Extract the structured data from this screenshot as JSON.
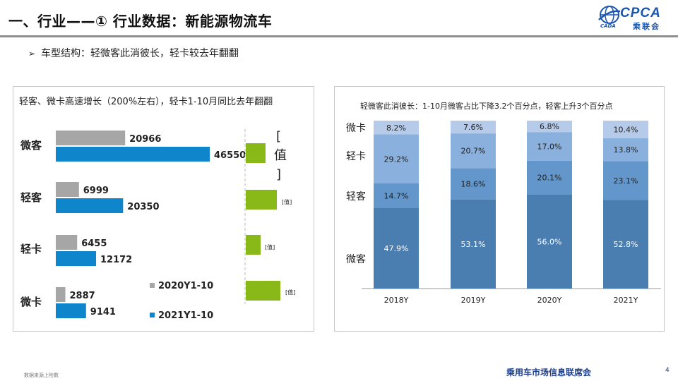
{
  "header": {
    "title": "一、行业——① 行业数据：新能源物流车",
    "logo": {
      "text": "CPCA",
      "subtitle": "乘联会",
      "small": "CADA"
    }
  },
  "bullet": {
    "icon": "arrow-right-icon",
    "text": "车型结构：轻微客此消彼长，轻卡较去年翻翻"
  },
  "left_panel": {
    "title": "轻客、微卡高速增长（200%左右），轻卡1-10月同比去年翻翻"
  },
  "right_panel": {
    "title": "轻微客此消彼长：1-10月微客占比下降3.2个百分点，轻客上升3个百分点"
  },
  "footer": {
    "source": "数据来源上险数",
    "org": "乘用车市场信息联席会",
    "page": "4"
  },
  "colors": {
    "gray": "#a6a6a6",
    "blue": "#0f86cb",
    "green": "#89b919",
    "stack_dark": "#4a7db0",
    "stack_mid": "#6396cb",
    "stack_light": "#8ab0dd",
    "stack_top": "#b6cbea"
  },
  "chart_data": [
    {
      "type": "bar",
      "orientation": "horizontal",
      "categories": [
        "微客",
        "轻客",
        "轻卡",
        "微卡"
      ],
      "series": [
        {
          "name": "2020Y1-10",
          "values": [
            20966,
            6999,
            6455,
            2887
          ]
        },
        {
          "name": "2021Y1-10",
          "values": [
            46550,
            20350,
            12172,
            9141
          ]
        }
      ],
      "legend": "bottom-right"
    },
    {
      "type": "bar",
      "orientation": "horizontal",
      "categories": [
        "微客",
        "轻客",
        "轻卡",
        "微卡"
      ],
      "data_label": "[值]"
    },
    {
      "type": "bar",
      "stacked": true,
      "percent": true,
      "categories": [
        "2018Y",
        "2019Y",
        "2020Y",
        "2021Y"
      ],
      "series": [
        {
          "name": "微客",
          "values": [
            47.9,
            53.1,
            56.0,
            52.8
          ]
        },
        {
          "name": "轻客",
          "values": [
            14.7,
            18.6,
            20.1,
            23.1
          ]
        },
        {
          "name": "轻卡",
          "values": [
            29.2,
            20.7,
            17.0,
            13.8
          ]
        },
        {
          "name": "微卡",
          "values": [
            8.2,
            7.6,
            6.8,
            10.4
          ]
        }
      ],
      "ylim": [
        0,
        100
      ]
    }
  ]
}
